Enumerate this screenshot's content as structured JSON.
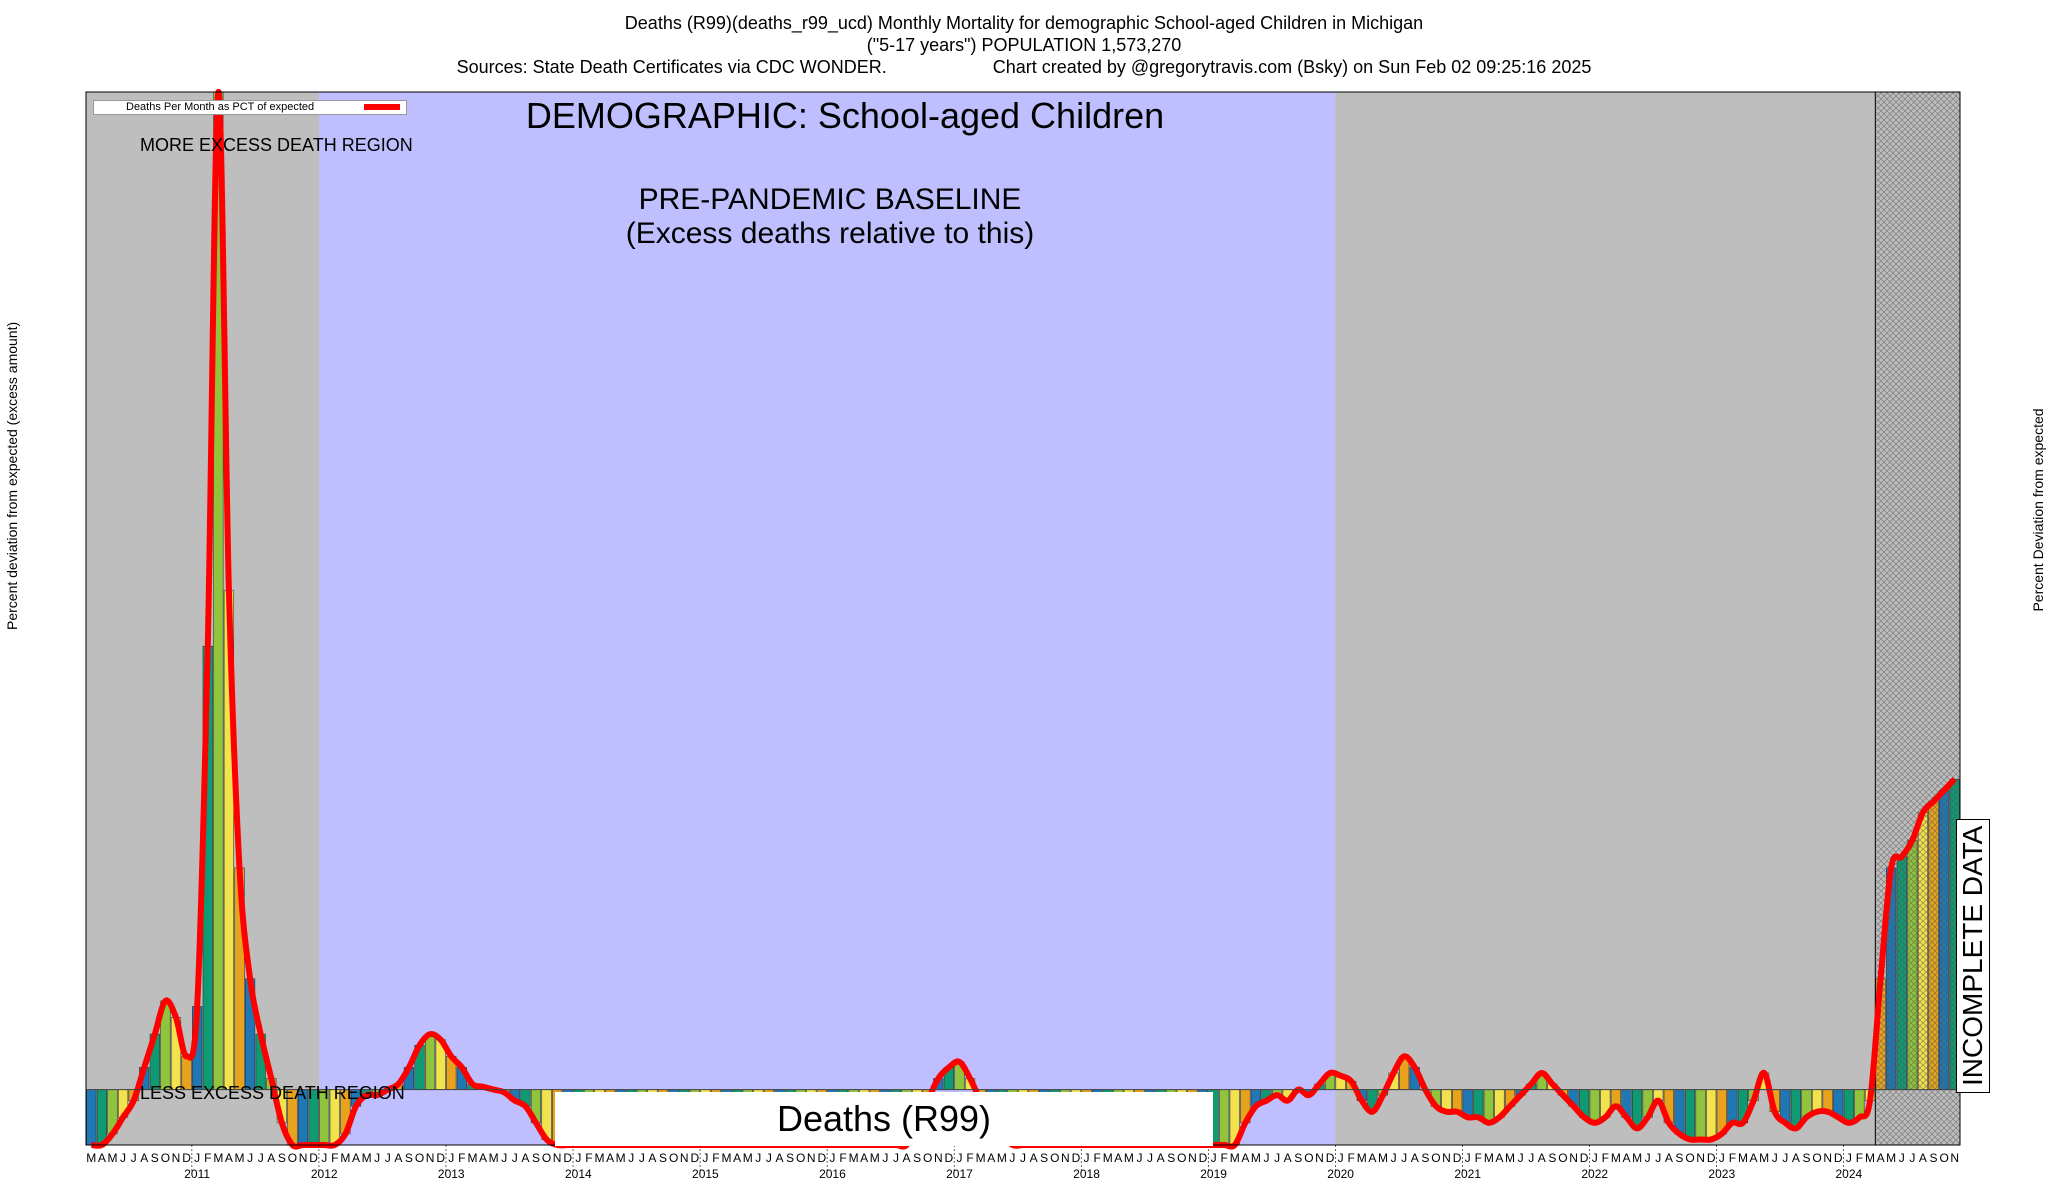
{
  "header": {
    "line1": "Deaths (R99)(deaths_r99_ucd) Monthly Mortality for demographic School-aged Children in Michigan",
    "line2": "(\"5-17 years\") POPULATION 1,573,270",
    "line3_left": "Sources: State Death Certificates via CDC WONDER.",
    "line3_right": "Chart created by @gregorytravis.com (Bsky) on Sun Feb 02 09:25:16 2025"
  },
  "annotations": {
    "demographic": "DEMOGRAPHIC: School-aged Children",
    "baseline_line1": "PRE-PANDEMIC BASELINE",
    "baseline_line2": "(Excess deaths relative to this)",
    "more_excess": "MORE EXCESS DEATH REGION",
    "less_excess": "LESS EXCESS DEATH REGION",
    "big_label": "Deaths (R99)",
    "incomplete": "INCOMPLETE DATA"
  },
  "legend": {
    "label": "Deaths Per Month as PCT of expected",
    "color": "#ff0000"
  },
  "colors": {
    "baseline_band": "#bfbfff",
    "grey_band": "#bebebe",
    "line": "#ff0000",
    "bar_palette": [
      "#1f77b4",
      "#0f9a72",
      "#8fc43c",
      "#f2e34c",
      "#e8a31c"
    ]
  },
  "chart_data": {
    "type": "bar",
    "title": "Deaths (R99)(deaths_r99_ucd) Monthly Mortality for demographic School-aged Children in Michigan",
    "ylabel_left": "Percent deviation from expected (excess amount)",
    "ylabel_right": "Percent Deviation from expected",
    "ylim": [
      -100,
      1800
    ],
    "start": "2010-03",
    "month_letters": [
      "J",
      "F",
      "M",
      "A",
      "M",
      "J",
      "J",
      "A",
      "S",
      "O",
      "N",
      "D"
    ],
    "years": [
      "2011",
      "2012",
      "2013",
      "2014",
      "2015",
      "2016",
      "2017",
      "2018",
      "2019",
      "2020",
      "2021",
      "2022",
      "2023",
      "2024"
    ],
    "baseline_range": [
      "2012-01",
      "2019-12"
    ],
    "incomplete_from": "2024-04",
    "series": [
      {
        "values": [
          -100,
          -100,
          -80,
          -50,
          -20,
          40,
          100,
          160,
          130,
          60,
          150,
          800,
          1800,
          900,
          400,
          200,
          100,
          20,
          -60,
          -100,
          -100,
          -100,
          -100,
          -100,
          -80,
          -30,
          -10,
          -10,
          0,
          10,
          40,
          80,
          100,
          90,
          60,
          40,
          10,
          5,
          0,
          -5,
          -20,
          -30,
          -60,
          -90,
          -100,
          -100,
          -100,
          -100,
          -100,
          -100,
          -100,
          -100,
          -100,
          -100,
          -100,
          -100,
          -100,
          -100,
          -100,
          -100,
          -100,
          -100,
          -100,
          -100,
          -100,
          -100,
          -100,
          -100,
          -100,
          -100,
          -100,
          -100,
          -100,
          -100,
          -100,
          -100,
          -100,
          -100,
          -60,
          -20,
          20,
          40,
          50,
          20,
          -20,
          -50,
          -80,
          -100,
          -100,
          -100,
          -100,
          -100,
          -100,
          -100,
          -100,
          -100,
          -100,
          -100,
          -100,
          -100,
          -100,
          -100,
          -100,
          -100,
          -100,
          -100,
          -100,
          -100,
          -100,
          -60,
          -30,
          -20,
          -10,
          -20,
          0,
          -10,
          10,
          30,
          25,
          15,
          -20,
          -40,
          -10,
          30,
          60,
          40,
          0,
          -30,
          -40,
          -40,
          -50,
          -50,
          -60,
          -50,
          -30,
          -10,
          10,
          30,
          10,
          -10,
          -30,
          -50,
          -60,
          -50,
          -30,
          -50,
          -70,
          -50,
          -20,
          -60,
          -80,
          -90,
          -90,
          -90,
          -80,
          -60,
          -60,
          -20,
          30,
          -40,
          -60,
          -70,
          -50,
          -40,
          -40,
          -50,
          -60,
          -50,
          -20,
          200,
          400,
          420,
          450,
          500,
          520,
          540,
          560
        ]
      }
    ]
  }
}
